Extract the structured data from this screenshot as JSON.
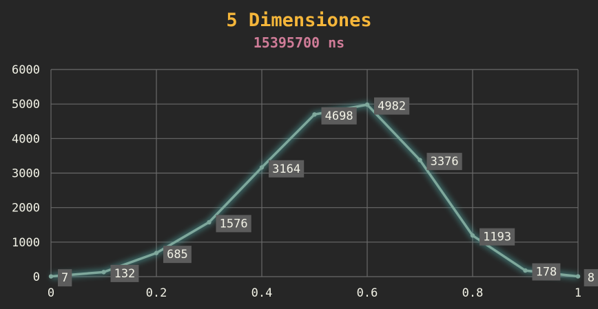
{
  "chart_data": {
    "type": "line",
    "title": "5 Dimensiones",
    "subtitle": "15395700 ns",
    "xlabel": "",
    "ylabel": "",
    "x": [
      0,
      0.1,
      0.2,
      0.3,
      0.4,
      0.5,
      0.6,
      0.7,
      0.8,
      0.9,
      1
    ],
    "series": [
      {
        "values": [
          7,
          132,
          685,
          1576,
          3164,
          4698,
          4982,
          3376,
          1193,
          178,
          8
        ]
      }
    ],
    "xlim": [
      0,
      1
    ],
    "ylim": [
      0,
      6000
    ],
    "x_ticks": [
      "0",
      "0.2",
      "0.4",
      "0.6",
      "0.8",
      "1"
    ],
    "y_ticks": [
      "0",
      "1000",
      "2000",
      "3000",
      "4000",
      "5000",
      "6000"
    ],
    "grid": true,
    "legend": "none"
  },
  "colors": {
    "background": "#262626",
    "title": "#f5b63a",
    "subtitle": "#d07c98",
    "line": "#7fa89c",
    "glow": "#4fa3a0",
    "grid": "#6a6a6a",
    "tick_text": "#f2f2e6",
    "label_bg": "#5c5c5c",
    "label_text": "#f2f2e6"
  }
}
